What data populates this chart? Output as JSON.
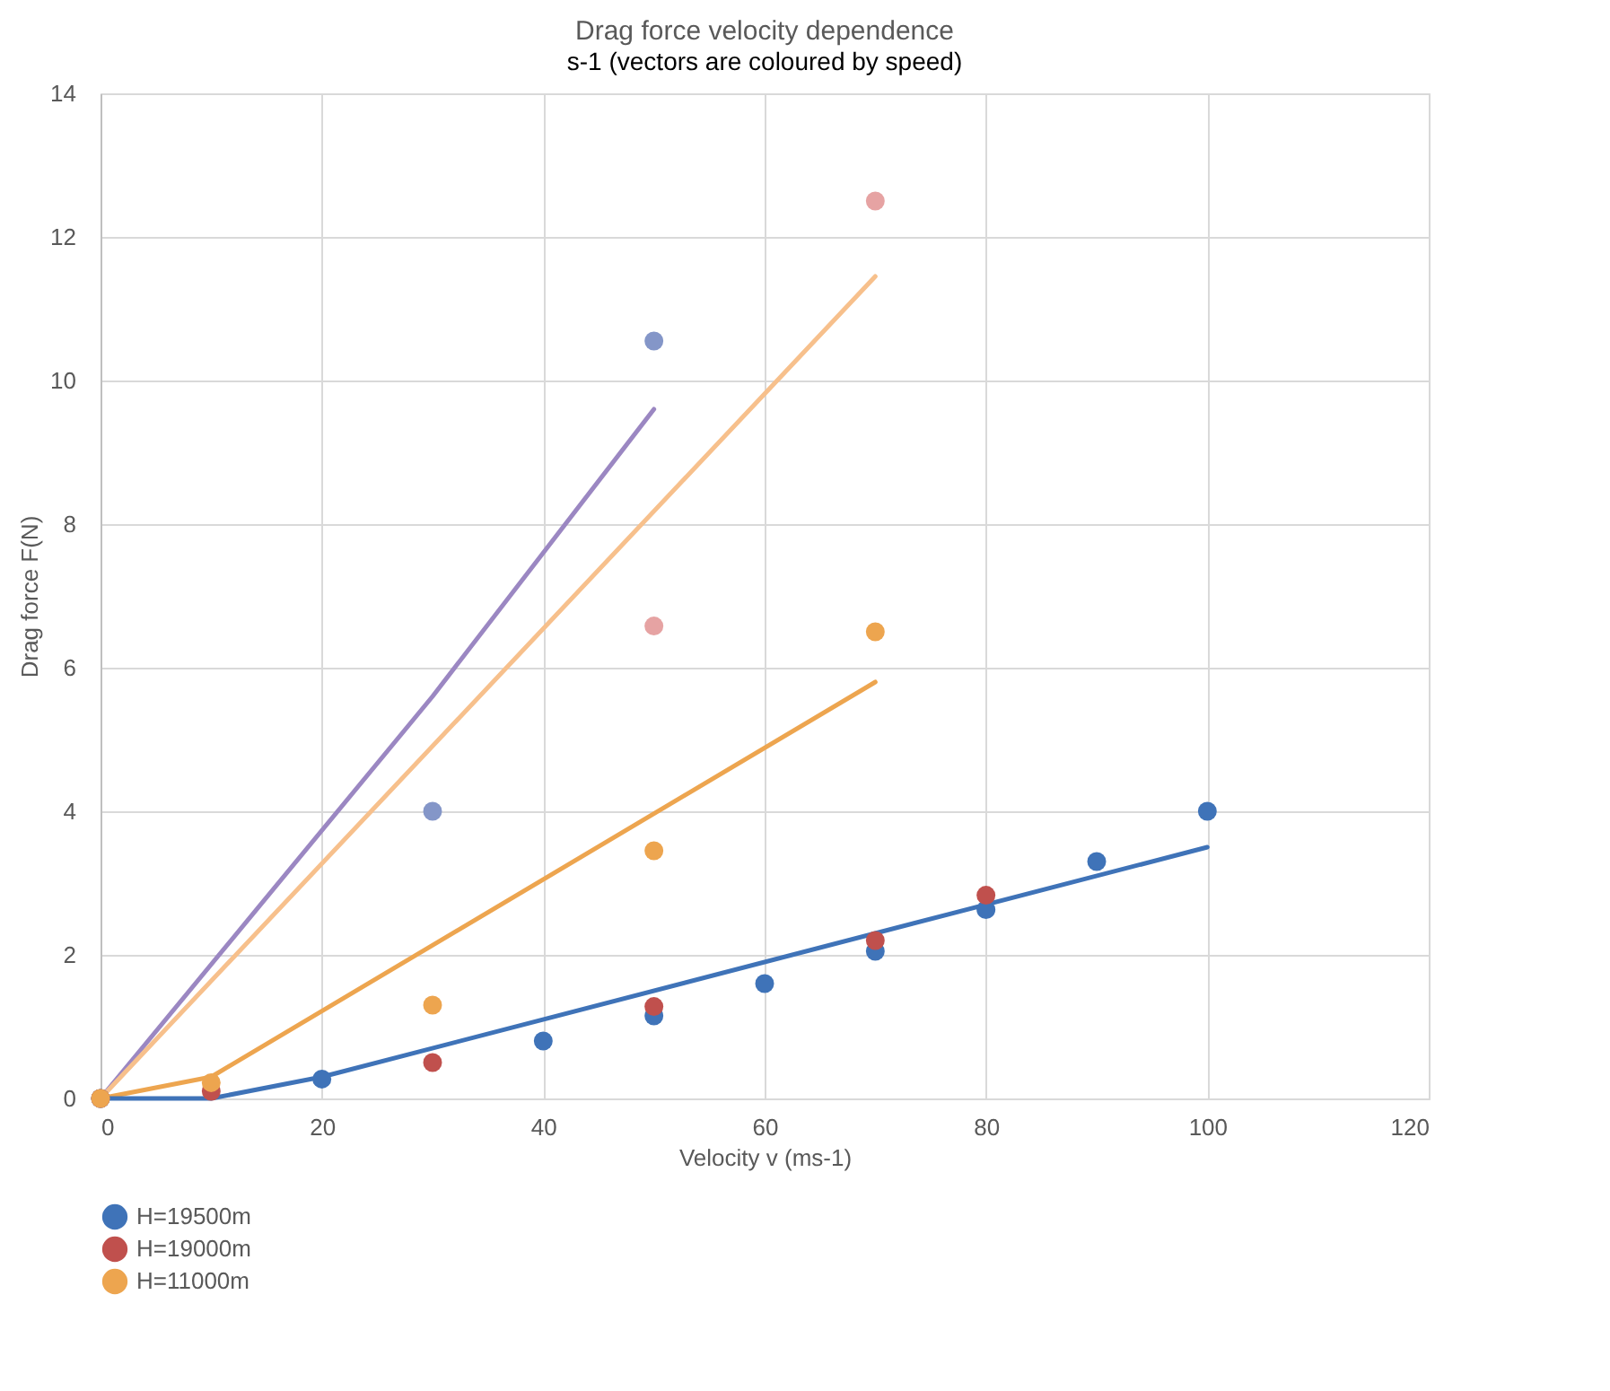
{
  "chart_data": {
    "type": "scatter",
    "title": "Drag force velocity dependence",
    "xlabel": "Velocity v (ms-1)",
    "ylabel": "Drag force F(N)",
    "annotations": [
      "s-1 (vectors are coloured by speed)"
    ],
    "xlim": [
      0,
      120
    ],
    "xticks": [
      0,
      20,
      40,
      60,
      80,
      100,
      120
    ],
    "ylim": [
      0,
      14
    ],
    "yticks": [
      0,
      2,
      4,
      6,
      8,
      10,
      12,
      14
    ],
    "grid": true,
    "legend": "bottom",
    "marker": "circle",
    "line_style": "solid",
    "series": [
      {
        "type": "line",
        "marker": "none",
        "color": "#9b87c2",
        "x": [
          0,
          30,
          50
        ],
        "values": [
          0,
          5.6,
          9.6
        ]
      },
      {
        "type": "line",
        "marker": "none",
        "color": "#f7c08c",
        "x": [
          0,
          70
        ],
        "values": [
          0,
          11.45
        ]
      },
      {
        "type": "line",
        "marker": "none",
        "color": "#eda54f",
        "x": [
          0,
          10,
          70
        ],
        "values": [
          0,
          0.3,
          5.8
        ]
      },
      {
        "type": "line",
        "marker": "none",
        "color": "#3f73b8",
        "x": [
          0,
          10,
          20,
          100
        ],
        "values": [
          0,
          0,
          0.3,
          3.5
        ]
      },
      {
        "color": "#8496c8",
        "x": [
          0,
          30,
          50
        ],
        "values": [
          0,
          4.0,
          10.55
        ]
      },
      {
        "color": "#e6a3a3",
        "x": [
          50,
          70
        ],
        "values": [
          6.58,
          12.5
        ]
      },
      {
        "name": "H=19500m",
        "color": "#3f73b8",
        "x": [
          0,
          10,
          20,
          40,
          50,
          60,
          70,
          80,
          90,
          100
        ],
        "values": [
          0,
          null,
          0.27,
          0.8,
          1.15,
          1.6,
          2.05,
          2.63,
          3.3,
          4.0
        ]
      },
      {
        "name": "H=19000m",
        "color": "#c0504d",
        "x": [
          0,
          10,
          30,
          50,
          70,
          80
        ],
        "values": [
          0,
          0.1,
          0.5,
          1.28,
          2.2,
          2.83
        ]
      },
      {
        "name": "H=11000m",
        "color": "#eda54f",
        "x": [
          0,
          10,
          30,
          50,
          70
        ],
        "values": [
          0,
          0.22,
          1.3,
          3.45,
          6.5
        ]
      }
    ]
  }
}
